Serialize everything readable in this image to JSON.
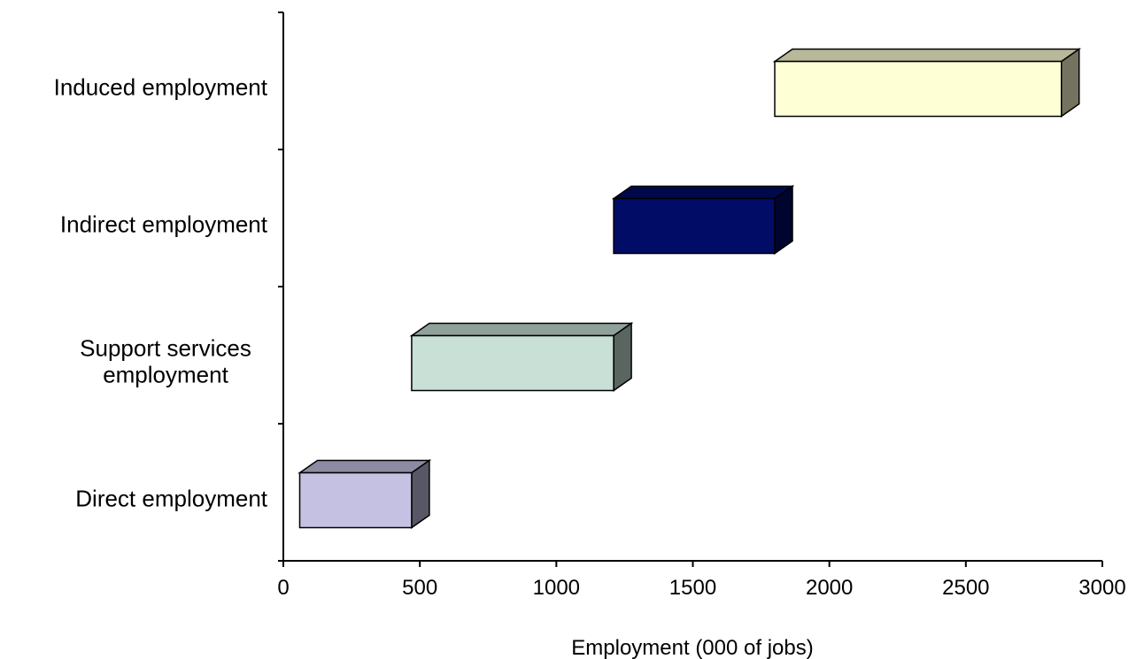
{
  "chart_data": {
    "type": "bar",
    "orientation": "horizontal",
    "style": "3d-floating-waterfall",
    "categories": [
      [
        "Direct employment"
      ],
      [
        "Support services",
        "employment"
      ],
      [
        "Indirect employment"
      ],
      [
        "Induced employment"
      ]
    ],
    "ranges": [
      {
        "start": 60,
        "end": 470,
        "color": "#c4c1e2"
      },
      {
        "start": 470,
        "end": 1210,
        "color": "#c8e0d6"
      },
      {
        "start": 1210,
        "end": 1800,
        "color": "#000c66"
      },
      {
        "start": 1800,
        "end": 2850,
        "color": "#ffffd6"
      }
    ],
    "xlabel": "Employment (000 of jobs)",
    "ylabel": "",
    "xlim": [
      0,
      3000
    ],
    "xticks": [
      "0",
      "500",
      "1000",
      "1500",
      "2000",
      "2500",
      "3000"
    ],
    "grid": false,
    "legend": "none"
  }
}
